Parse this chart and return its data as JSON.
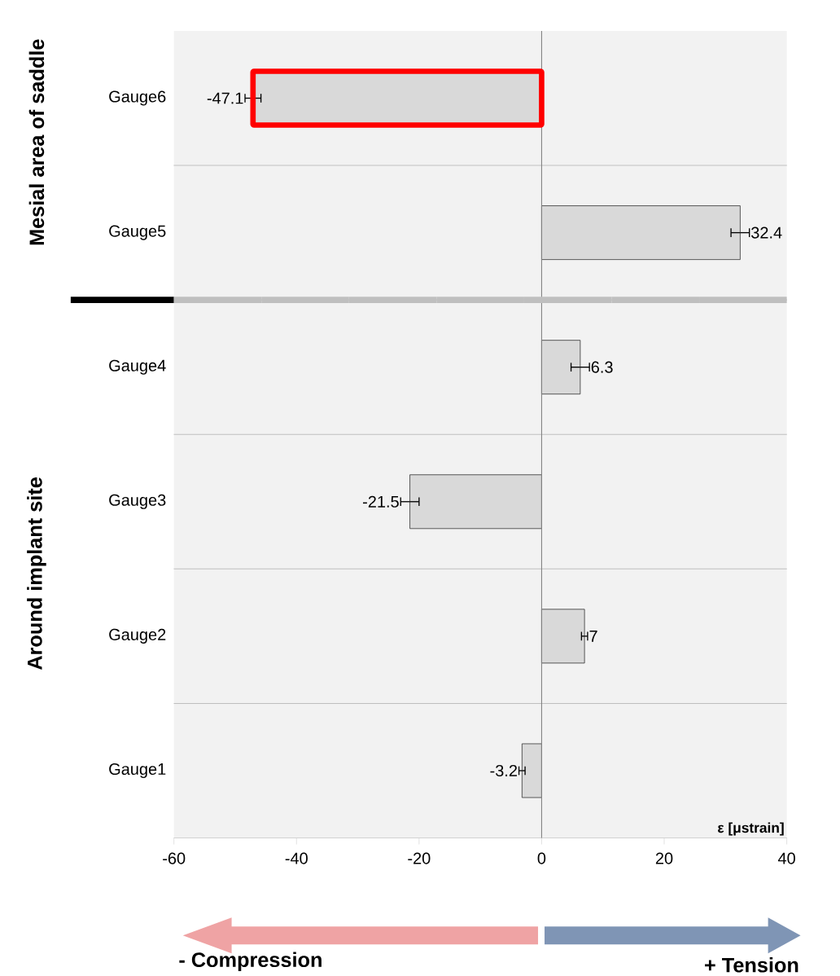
{
  "chart_data": {
    "type": "bar",
    "orientation": "horizontal",
    "categories": [
      "Gauge6",
      "Gauge5",
      "Gauge4",
      "Gauge3",
      "Gauge2",
      "Gauge1"
    ],
    "values": [
      -47.1,
      32.4,
      6.3,
      -21.5,
      7,
      -3.2
    ],
    "errors": [
      1.3,
      1.5,
      1.5,
      1.5,
      0.5,
      0.5
    ],
    "color": "#d9d9d9",
    "xlim": [
      -60,
      40
    ],
    "xticks": [
      -60,
      -40,
      -20,
      0,
      20,
      40
    ],
    "xlabel": "ε [μstrain]",
    "data_labels": true,
    "grid": "y",
    "annotations": [
      "Mesial area of saddle",
      "Around implant site",
      "- Compression",
      "+ Tension"
    ]
  }
}
